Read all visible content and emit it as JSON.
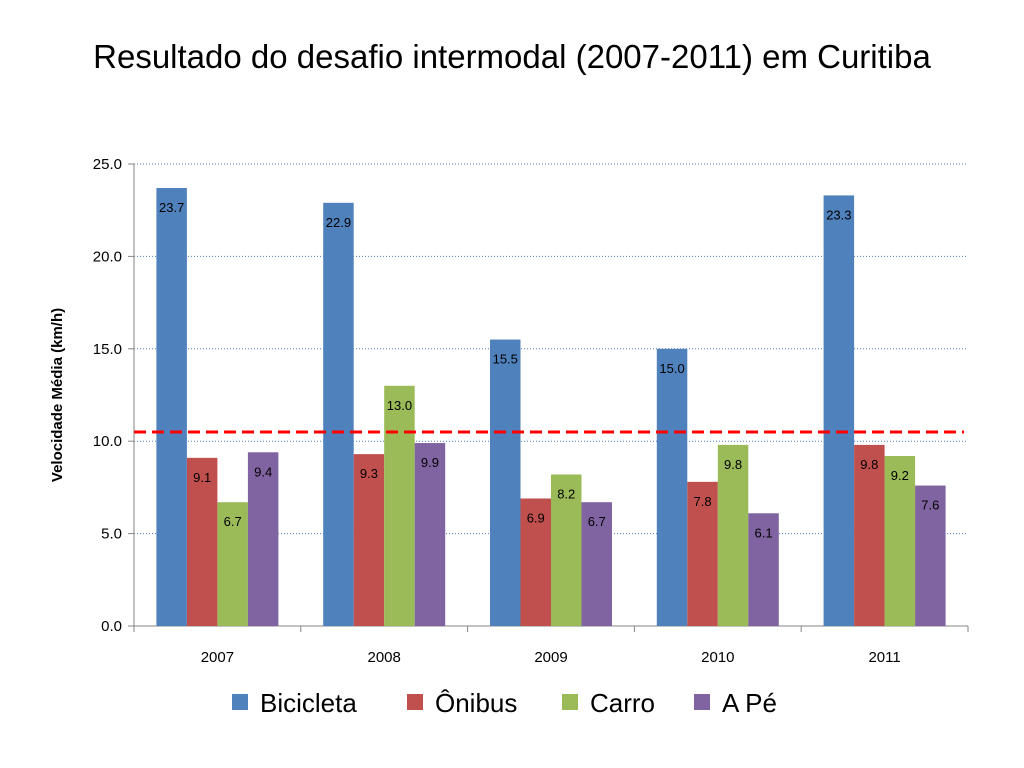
{
  "title": "Resultado do desafio intermodal (2007-2011) em Curitiba",
  "chart_data": {
    "type": "bar",
    "categories": [
      "2007",
      "2008",
      "2009",
      "2010",
      "2011"
    ],
    "series": [
      {
        "name": "Bicicleta",
        "color": "#4F81BD",
        "values": [
          23.7,
          22.9,
          15.5,
          15.0,
          23.3
        ],
        "labels": [
          "23.7",
          "22.9",
          "15.5",
          "15.0",
          "23.3"
        ]
      },
      {
        "name": "Ônibus",
        "color": "#C0504D",
        "values": [
          9.1,
          9.3,
          6.9,
          7.8,
          9.8
        ],
        "labels": [
          "9.1",
          "9.3",
          "6.9",
          "7.8",
          "9.8"
        ]
      },
      {
        "name": "Carro",
        "color": "#9BBB59",
        "values": [
          6.7,
          13.0,
          8.2,
          9.8,
          9.2
        ],
        "labels": [
          "6.7",
          "13.0",
          "8.2",
          "9.8",
          "9.2"
        ]
      },
      {
        "name": "A Pé",
        "color": "#8064A2",
        "values": [
          9.4,
          9.9,
          6.7,
          6.1,
          7.6
        ],
        "labels": [
          "9.4",
          "9.9",
          "6.7",
          "6.1",
          "7.6"
        ]
      }
    ],
    "ylabel": "Velocidade Média (km/h)",
    "xlabel": "",
    "ylim": [
      0,
      25
    ],
    "yticks": [
      "0.0",
      "5.0",
      "10.0",
      "15.0",
      "20.0",
      "25.0"
    ],
    "ytick_values": [
      0,
      5,
      10,
      15,
      20,
      25
    ],
    "grid": true,
    "grid_style": "dotted",
    "legend_position": "bottom",
    "reference_line": {
      "value": 10.5,
      "color": "#FF0000",
      "style": "dashed"
    }
  }
}
